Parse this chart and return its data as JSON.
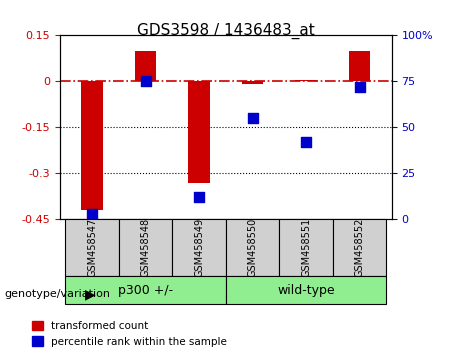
{
  "title": "GDS3598 / 1436483_at",
  "samples": [
    "GSM458547",
    "GSM458548",
    "GSM458549",
    "GSM458550",
    "GSM458551",
    "GSM458552"
  ],
  "transformed_count": [
    -0.42,
    0.1,
    -0.33,
    -0.01,
    0.005,
    0.1
  ],
  "percentile_rank": [
    3,
    75,
    12,
    55,
    42,
    72
  ],
  "ylim_left": [
    -0.45,
    0.15
  ],
  "ylim_right": [
    0,
    100
  ],
  "yticks_left": [
    -0.45,
    -0.3,
    -0.15,
    0.0,
    0.15
  ],
  "ytick_labels_left": [
    "-0.45",
    "-0.3",
    "-0.15",
    "0",
    "0.15"
  ],
  "yticks_right": [
    0,
    25,
    50,
    75,
    100
  ],
  "ytick_labels_right": [
    "0",
    "25",
    "50",
    "75",
    "100%"
  ],
  "bar_color": "#cc0000",
  "dot_color": "#0000cc",
  "dashed_line_color": "#cc0000",
  "dotted_line_color": "#000000",
  "group1_label": "p300 +/-",
  "group2_label": "wild-type",
  "group1_indices": [
    0,
    1,
    2
  ],
  "group2_indices": [
    3,
    4,
    5
  ],
  "group_color1": "#90ee90",
  "group_color2": "#90ee90",
  "genotype_label": "genotype/variation",
  "legend_red": "transformed count",
  "legend_blue": "percentile rank within the sample",
  "bar_width": 0.4,
  "dot_size": 60,
  "background_color": "#ffffff",
  "plot_bg_color": "#ffffff",
  "grid_color": "#aaaaaa"
}
